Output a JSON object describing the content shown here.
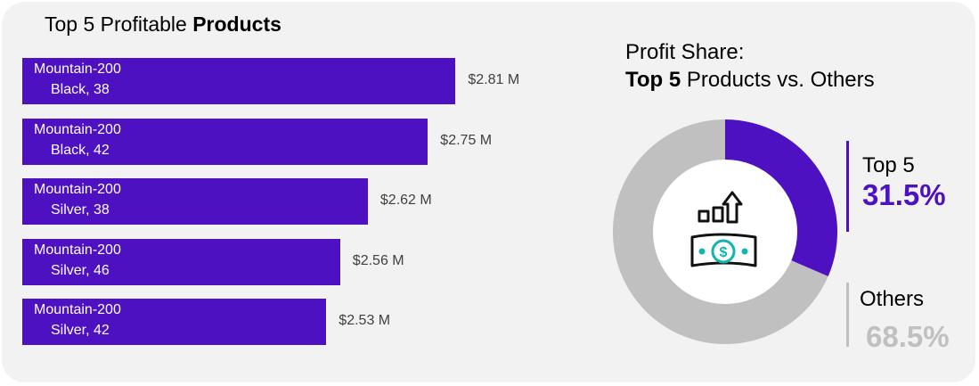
{
  "title_regular": "Top 5 Profitable ",
  "title_bold": "Products",
  "colors": {
    "accent": "#4E11C2",
    "muted": "#C0C0C0",
    "background": "#F2F2F2"
  },
  "chart_data": [
    {
      "type": "bar",
      "orientation": "horizontal",
      "categories": [
        [
          "Mountain-200",
          "Black, 38"
        ],
        [
          "Mountain-200",
          "Black, 42"
        ],
        [
          "Mountain-200",
          "Silver, 38"
        ],
        [
          "Mountain-200",
          "Silver, 46"
        ],
        [
          "Mountain-200",
          "Silver, 42"
        ]
      ],
      "values": [
        2.81,
        2.75,
        2.62,
        2.56,
        2.53
      ],
      "value_labels": [
        "$2.81 M",
        "$2.75 M",
        "$2.62 M",
        "$2.56 M",
        "$2.53 M"
      ],
      "unit": "$M",
      "xlim": [
        2.3,
        2.84
      ]
    },
    {
      "type": "pie",
      "variant": "donut",
      "title_line1": "Profit Share:",
      "title_accent": "Top 5",
      "title_rest": " Products vs. Others",
      "slices": [
        {
          "label": "Top 5",
          "value": 31.5,
          "display": "31.5%"
        },
        {
          "label": "Others",
          "value": 68.5,
          "display": "68.5%"
        }
      ],
      "center_icons": [
        "growth-bars-arrow-icon",
        "money-banknote-icon"
      ]
    }
  ]
}
